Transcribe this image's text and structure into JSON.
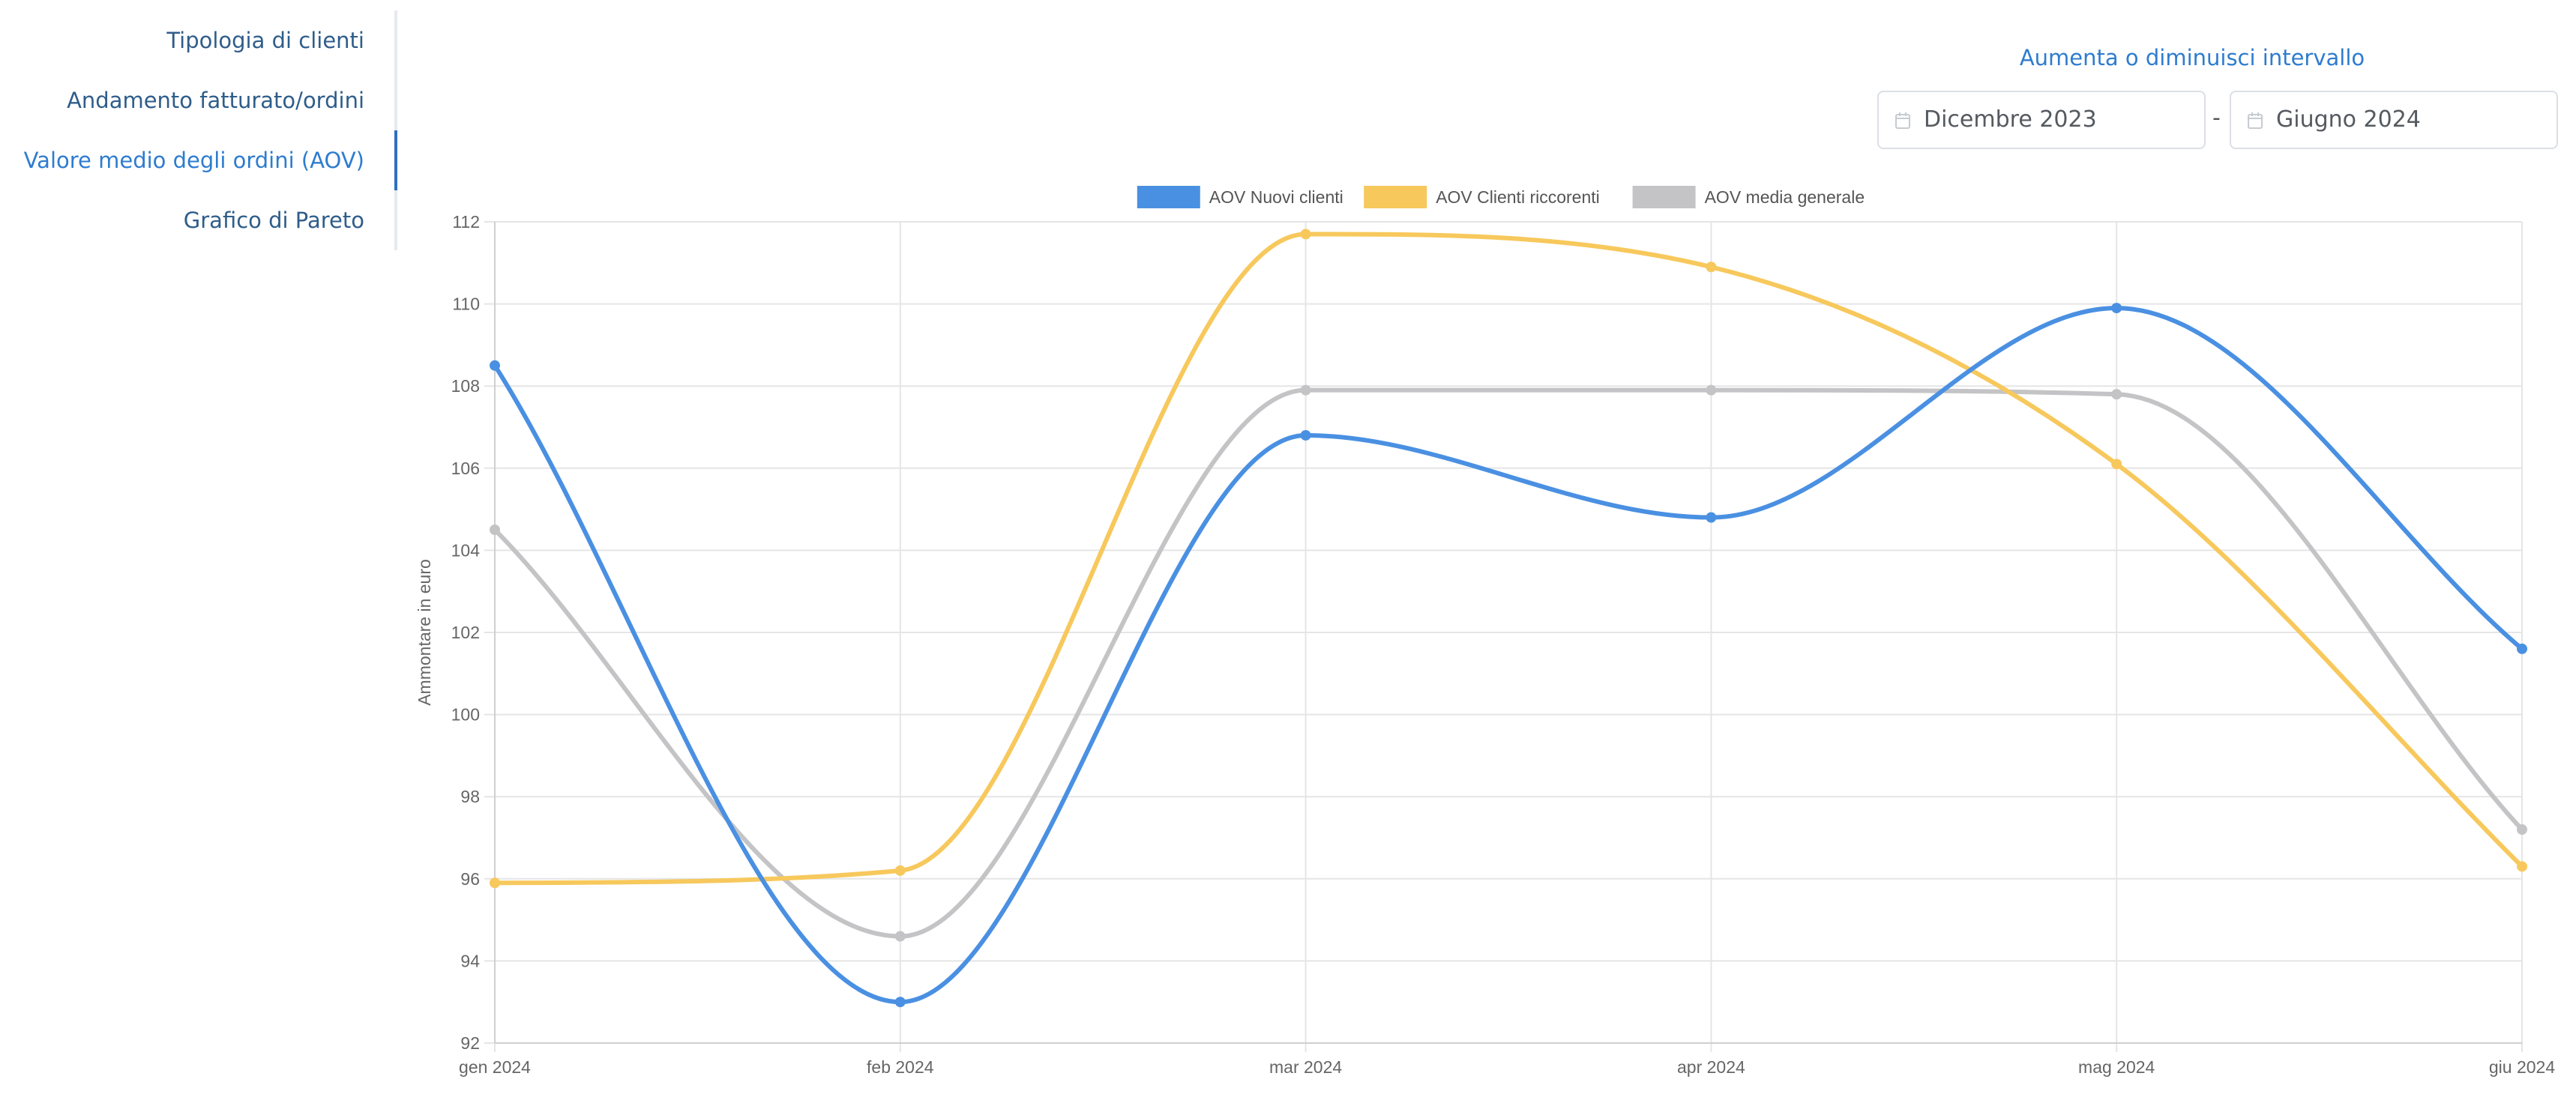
{
  "sidebar": {
    "items": [
      {
        "label": "Tipologia di clienti",
        "active": false
      },
      {
        "label": "Andamento fatturato/ordini",
        "active": false
      },
      {
        "label": "Valore medio degli ordini (AOV)",
        "active": true
      },
      {
        "label": "Grafico di Pareto",
        "active": false
      }
    ]
  },
  "range": {
    "title": "Aumenta o diminuisci intervallo",
    "start": "Dicembre 2023",
    "separator": "-",
    "end": "Giugno 2024",
    "icon": "calendar-icon"
  },
  "chart_data": {
    "type": "line",
    "categories": [
      "gen 2024",
      "feb 2024",
      "mar 2024",
      "apr 2024",
      "mag 2024",
      "giu 2024"
    ],
    "ylabel": "Ammontare in euro",
    "xlabel": "",
    "ylim": [
      92,
      112
    ],
    "yticks": [
      "92",
      "94",
      "96",
      "98",
      "100",
      "102",
      "104",
      "106",
      "108",
      "110",
      "112"
    ],
    "grid": true,
    "legend_position": "top-center",
    "series": [
      {
        "name": "AOV Nuovi clienti",
        "color": "#4a90e2",
        "values": [
          108.5,
          93.0,
          106.8,
          104.8,
          109.9,
          101.6
        ]
      },
      {
        "name": "AOV Clienti riccorenti",
        "color": "#f7c85c",
        "values": [
          95.9,
          96.2,
          111.7,
          110.9,
          106.1,
          96.3
        ]
      },
      {
        "name": "AOV media generale",
        "color": "#c4c4c6",
        "values": [
          104.5,
          94.6,
          107.9,
          107.9,
          107.8,
          97.2
        ]
      }
    ]
  }
}
